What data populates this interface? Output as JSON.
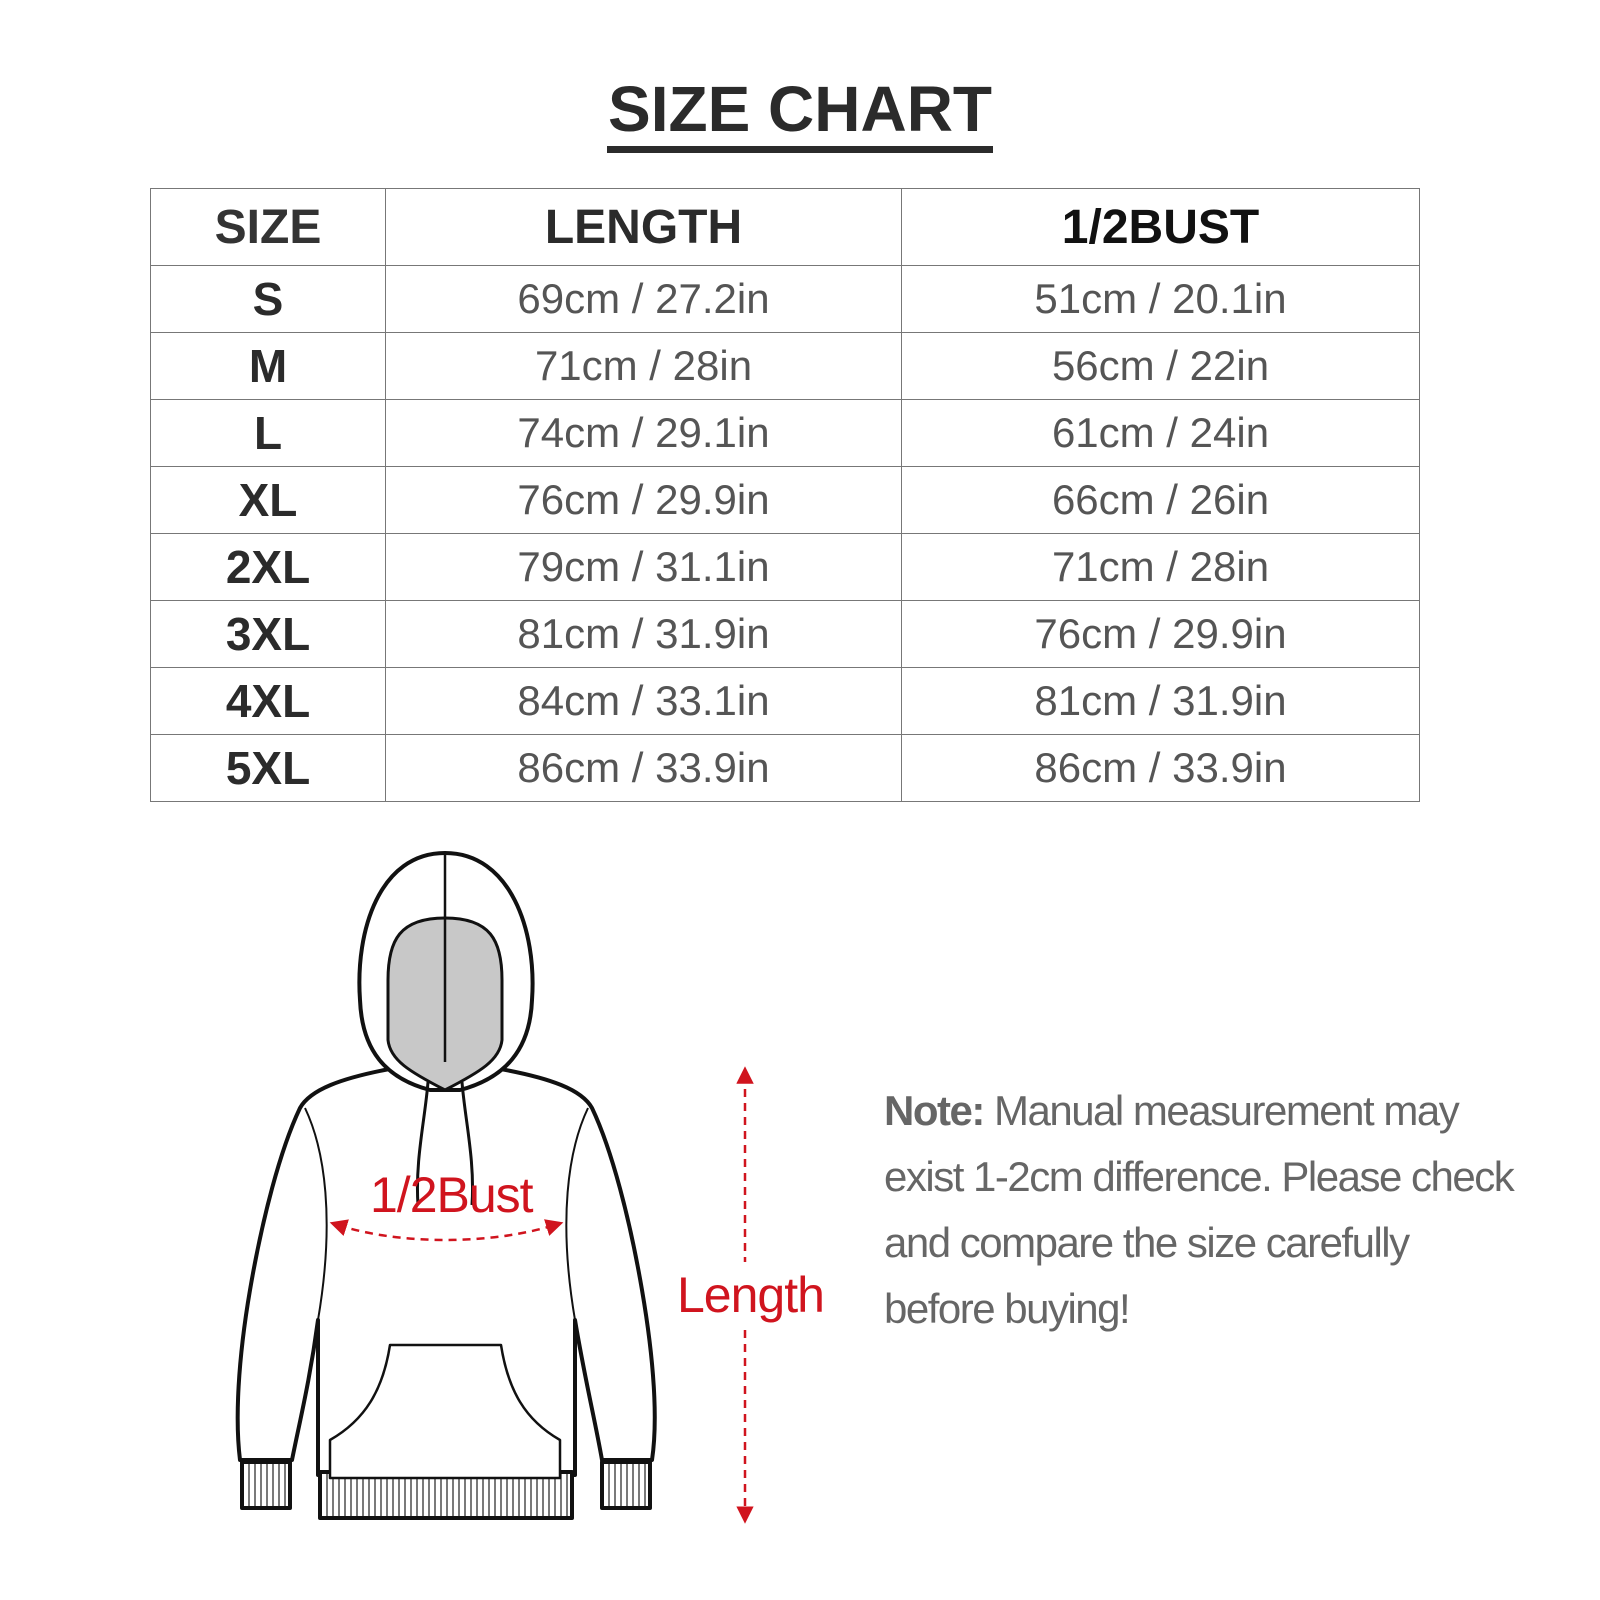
{
  "title": "SIZE CHART",
  "table": {
    "headers": [
      "SIZE",
      "LENGTH",
      "1/2BUST"
    ],
    "rows": [
      [
        "S",
        "69cm / 27.2in",
        "51cm / 20.1in"
      ],
      [
        "M",
        "71cm / 28in",
        "56cm / 22in"
      ],
      [
        "L",
        "74cm / 29.1in",
        "61cm / 24in"
      ],
      [
        "XL",
        "76cm / 29.9in",
        "66cm / 26in"
      ],
      [
        "2XL",
        "79cm / 31.1in",
        "71cm / 28in"
      ],
      [
        "3XL",
        "81cm / 31.9in",
        "76cm / 29.9in"
      ],
      [
        "4XL",
        "84cm / 33.1in",
        "81cm / 31.9in"
      ],
      [
        "5XL",
        "86cm / 33.9in",
        "86cm / 33.9in"
      ]
    ]
  },
  "diagram": {
    "bust_label": "1/2Bust",
    "length_label": "Length",
    "accent_color": "#d0141e"
  },
  "note": {
    "label": "Note:",
    "text": " Manual measurement may exist 1-2cm difference. Please check and compare the size carefully before buying!"
  }
}
